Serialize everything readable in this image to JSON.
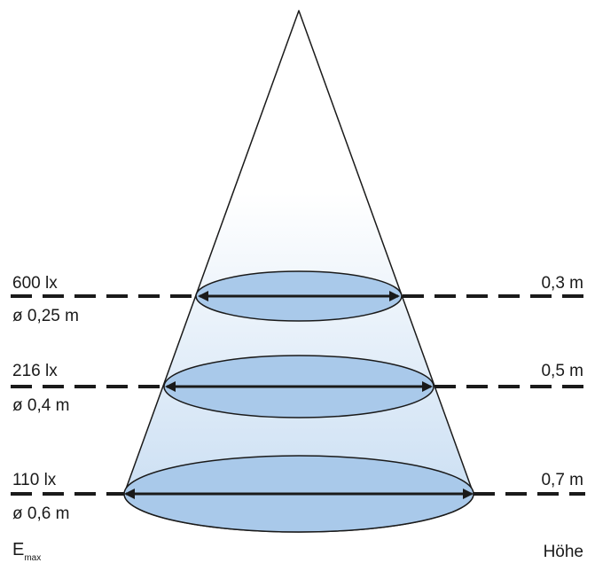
{
  "levels": [
    {
      "illuminance": "600 lx",
      "diameter": "ø 0,25 m",
      "height": "0,3 m"
    },
    {
      "illuminance": "216 lx",
      "diameter": "ø 0,4 m",
      "height": "0,5 m"
    },
    {
      "illuminance": "110 lx",
      "diameter": "ø 0,6 m",
      "height": "0,7 m"
    }
  ],
  "footer": {
    "left_main": "E",
    "left_sub": "max",
    "right": "Höhe"
  },
  "colors": {
    "ellipse_fill": "#a9c9ea",
    "cone_top": "#ffffff",
    "cone_bottom": "#c6dcf2",
    "stroke": "#1a1a1a"
  }
}
